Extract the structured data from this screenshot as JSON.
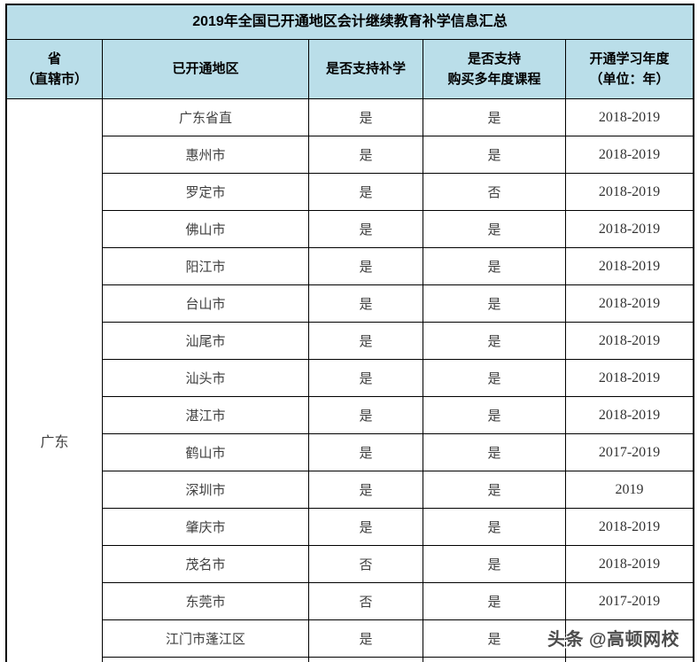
{
  "table": {
    "headers": {
      "province_line1": "省",
      "province_line2": "（直辖市）",
      "region": "已开通地区",
      "support": "是否支持补学",
      "multiyear_line1": "是否支持",
      "multiyear_line2": "购买多年度课程",
      "years_line1": "开通学习年度",
      "years_line2": "（单位：年）"
    }
  },
  "chart_data": {
    "type": "table",
    "title": "2019年全国已开通地区会计继续教育补学信息汇总",
    "columns": [
      "省（直辖市）",
      "已开通地区",
      "是否支持补学",
      "是否支持购买多年度课程",
      "开通学习年度（单位：年）"
    ],
    "province": "广东",
    "rows": [
      [
        "广东省直",
        "是",
        "是",
        "2018-2019"
      ],
      [
        "惠州市",
        "是",
        "是",
        "2018-2019"
      ],
      [
        "罗定市",
        "是",
        "否",
        "2018-2019"
      ],
      [
        "佛山市",
        "是",
        "是",
        "2018-2019"
      ],
      [
        "阳江市",
        "是",
        "是",
        "2018-2019"
      ],
      [
        "台山市",
        "是",
        "是",
        "2018-2019"
      ],
      [
        "汕尾市",
        "是",
        "是",
        "2018-2019"
      ],
      [
        "汕头市",
        "是",
        "是",
        "2018-2019"
      ],
      [
        "湛江市",
        "是",
        "是",
        "2018-2019"
      ],
      [
        "鹤山市",
        "是",
        "是",
        "2017-2019"
      ],
      [
        "深圳市",
        "是",
        "是",
        "2019"
      ],
      [
        "肇庆市",
        "是",
        "是",
        "2018-2019"
      ],
      [
        "茂名市",
        "否",
        "是",
        "2018-2019"
      ],
      [
        "东莞市",
        "否",
        "是",
        "2017-2019"
      ],
      [
        "江门市蓬江区",
        "是",
        "是",
        ""
      ]
    ]
  },
  "watermark": "头条 @高顿网校",
  "colors": {
    "header_bg": "#BADEE9",
    "border": "#000000",
    "body_text": "#3F3F3F",
    "title_text": "#000000",
    "background": "#FFFFFF"
  }
}
